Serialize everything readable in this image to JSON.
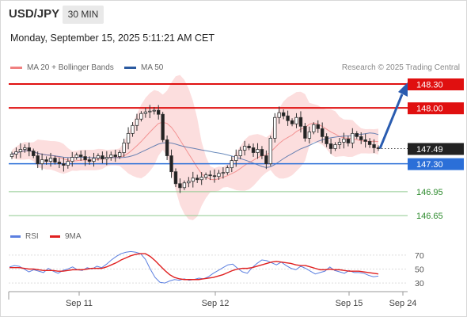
{
  "header": {
    "symbol": "USD/JPY",
    "timeframe": "30 MIN",
    "datetime": "Monday, September 15, 2025 5:11:21 AM CET"
  },
  "legend": {
    "ma20_label": "MA 20 + Bollinger Bands",
    "ma20_color": "#f08080",
    "ma50_label": "MA 50",
    "ma50_color": "#2b5aa0",
    "credit": "Research © 2025 Trading Central"
  },
  "rsi_legend": {
    "rsi_label": "RSI",
    "rsi_color": "#5b7fe0",
    "ma_label": "9MA",
    "ma_color": "#e02020"
  },
  "chart_data": [
    {
      "type": "candlestick",
      "title": "",
      "x_ticks": [
        "Sep 11",
        "Sep 12",
        "Sep 15",
        "Sep 24"
      ],
      "ylim": [
        146.55,
        148.35
      ],
      "grid": false,
      "levels": [
        {
          "value": 148.3,
          "label": "148.30",
          "kind": "resistance",
          "color": "#e01010"
        },
        {
          "value": 148.0,
          "label": "148.00",
          "kind": "resistance",
          "color": "#e01010"
        },
        {
          "value": 147.49,
          "label": "147.49",
          "kind": "last-price",
          "color": "#222222"
        },
        {
          "value": 147.3,
          "label": "147.30",
          "kind": "pivot",
          "color": "#2b6fd8"
        },
        {
          "value": 146.95,
          "label": "146.95",
          "kind": "support",
          "color": "#2e8b2e"
        },
        {
          "value": 146.65,
          "label": "146.65",
          "kind": "support",
          "color": "#2e8b2e"
        }
      ],
      "close_series": [
        147.42,
        147.45,
        147.48,
        147.5,
        147.46,
        147.4,
        147.3,
        147.35,
        147.33,
        147.37,
        147.32,
        147.3,
        147.28,
        147.33,
        147.38,
        147.41,
        147.39,
        147.35,
        147.33,
        147.37,
        147.4,
        147.36,
        147.38,
        147.41,
        147.39,
        147.44,
        147.56,
        147.68,
        147.78,
        147.86,
        147.93,
        147.95,
        147.96,
        147.97,
        147.92,
        147.6,
        147.4,
        147.2,
        147.05,
        147.0,
        147.06,
        147.08,
        147.12,
        147.1,
        147.13,
        147.16,
        147.15,
        147.14,
        147.18,
        147.19,
        147.25,
        147.34,
        147.4,
        147.47,
        147.52,
        147.5,
        147.44,
        147.48,
        147.4,
        147.3,
        147.62,
        147.88,
        147.94,
        147.9,
        147.84,
        147.8,
        147.88,
        147.77,
        147.62,
        147.7,
        147.79,
        147.74,
        147.64,
        147.55,
        147.49,
        147.54,
        147.57,
        147.61,
        147.56,
        147.68,
        147.64,
        147.6,
        147.58,
        147.54,
        147.5,
        147.49
      ],
      "projection": {
        "from": 147.49,
        "to": 148.3
      }
    },
    {
      "type": "line",
      "title": "",
      "ylim": [
        20,
        80
      ],
      "y_ticks": [
        70,
        50,
        30
      ],
      "series": [
        {
          "name": "RSI",
          "values": [
            53,
            55,
            54,
            50,
            46,
            49,
            47,
            45,
            51,
            47,
            44,
            48,
            50,
            53,
            49,
            48,
            52,
            50,
            54,
            52,
            57,
            63,
            68,
            72,
            74,
            75,
            74,
            72,
            64,
            50,
            38,
            31,
            30,
            33,
            35,
            34,
            36,
            34,
            35,
            37,
            36,
            39,
            44,
            48,
            52,
            56,
            57,
            51,
            46,
            44,
            52,
            58,
            63,
            62,
            59,
            56,
            60,
            55,
            51,
            49,
            54,
            51,
            47,
            43,
            45,
            47,
            53,
            48,
            46,
            44,
            48,
            45,
            45,
            44,
            41,
            39,
            40
          ]
        },
        {
          "name": "9MA",
          "values": [
            52,
            52,
            52,
            51,
            50,
            50,
            49,
            48,
            48,
            48,
            47,
            47,
            48,
            49,
            49,
            49,
            50,
            51,
            51,
            51,
            53,
            56,
            59,
            63,
            66,
            69,
            71,
            72,
            72,
            68,
            62,
            55,
            48,
            42,
            38,
            36,
            35,
            35,
            35,
            35,
            36,
            37,
            38,
            40,
            42,
            45,
            48,
            50,
            51,
            51,
            52,
            54,
            56,
            58,
            60,
            61,
            60,
            59,
            58,
            56,
            55,
            55,
            53,
            51,
            49,
            49,
            50,
            49,
            49,
            48,
            47,
            47,
            47,
            46,
            45,
            44,
            43
          ]
        }
      ]
    }
  ]
}
